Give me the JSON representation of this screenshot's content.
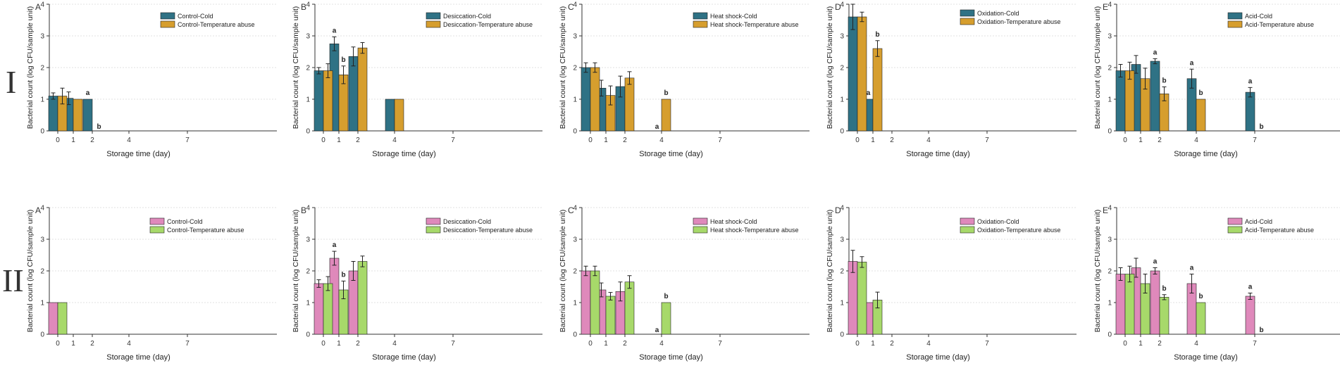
{
  "row_labels": [
    "I",
    "II"
  ],
  "colors": {
    "cold_row1": "#2f7285",
    "abuse_row1": "#d69e2e",
    "cold_row2": "#df89bb",
    "abuse_row2": "#a7d96a",
    "axis": "#333333",
    "grid": "#e1e1e1"
  },
  "chart_data": [
    {
      "type": "bar",
      "row": 1,
      "panel": "A",
      "xlabel": "Storage time (day)",
      "ylabel": "Bacterial count (log CFU/sample unit)",
      "x_ticks": [
        "0",
        "1",
        "2",
        "4",
        "7"
      ],
      "yticks": [
        "0",
        "1",
        "2",
        "3",
        "4"
      ],
      "ylim": [
        0,
        4
      ],
      "legend": "top-right",
      "series": [
        {
          "name": "Control-Cold",
          "values": [
            1.1,
            1.03,
            1.0,
            null,
            null
          ],
          "errors": [
            0.1,
            0.2,
            0,
            null,
            null
          ],
          "letters": [
            "",
            "",
            "a",
            "",
            ""
          ]
        },
        {
          "name": "Control-Temperature abuse",
          "values": [
            1.1,
            1.0,
            0,
            null,
            null
          ],
          "errors": [
            0.25,
            0,
            0,
            null,
            null
          ],
          "letters": [
            "",
            "",
            "b",
            "",
            ""
          ]
        }
      ]
    },
    {
      "type": "bar",
      "row": 1,
      "panel": "B",
      "xlabel": "Storage time (day)",
      "ylabel": "Bacterial count (log CFU/sample unit)",
      "x_ticks": [
        "0",
        "1",
        "2",
        "4",
        "7"
      ],
      "yticks": [
        "0",
        "1",
        "2",
        "3",
        "4"
      ],
      "ylim": [
        0,
        4
      ],
      "legend": "top-right",
      "series": [
        {
          "name": "Desiccation-Cold",
          "values": [
            1.9,
            2.75,
            2.35,
            1.0,
            null
          ],
          "errors": [
            0.1,
            0.22,
            0.3,
            0,
            null
          ],
          "letters": [
            "",
            "a",
            "",
            "",
            ""
          ]
        },
        {
          "name": "Desiccation-Temperature abuse",
          "values": [
            1.9,
            1.77,
            2.62,
            1.0,
            null
          ],
          "errors": [
            0.22,
            0.28,
            0.17,
            0,
            null
          ],
          "letters": [
            "",
            "b",
            "",
            "",
            ""
          ]
        }
      ]
    },
    {
      "type": "bar",
      "row": 1,
      "panel": "C",
      "xlabel": "Storage time (day)",
      "ylabel": "Bacterial count (log CFU/sample unit)",
      "x_ticks": [
        "0",
        "1",
        "2",
        "4",
        "7"
      ],
      "yticks": [
        "0",
        "1",
        "2",
        "3",
        "4"
      ],
      "ylim": [
        0,
        4
      ],
      "legend": "top-right",
      "series": [
        {
          "name": "Heat shock-Cold",
          "values": [
            2.0,
            1.35,
            1.4,
            0,
            null
          ],
          "errors": [
            0.15,
            0.25,
            0.33,
            0,
            null
          ],
          "letters": [
            "",
            "",
            "",
            "a",
            ""
          ]
        },
        {
          "name": "Heat shock-Temperature abuse",
          "values": [
            2.0,
            1.12,
            1.67,
            1.0,
            null
          ],
          "errors": [
            0.15,
            0.3,
            0.2,
            0,
            null
          ],
          "letters": [
            "",
            "",
            "",
            "b",
            ""
          ]
        }
      ]
    },
    {
      "type": "bar",
      "row": 1,
      "panel": "D",
      "xlabel": "Storage time (day)",
      "ylabel": "Bacterial count (log CFU/sample unit)",
      "x_ticks": [
        "0",
        "1",
        "2",
        "4",
        "7"
      ],
      "yticks": [
        "0",
        "1",
        "2",
        "3",
        "4"
      ],
      "ylim": [
        0,
        4
      ],
      "legend": "top-right",
      "series": [
        {
          "name": "Oxidation-Cold",
          "values": [
            3.6,
            1.0,
            null,
            null,
            null
          ],
          "errors": [
            0.4,
            0,
            null,
            null,
            null
          ],
          "letters": [
            "",
            "a",
            "",
            "",
            ""
          ]
        },
        {
          "name": "Oxidation-Temperature abuse",
          "values": [
            3.6,
            2.6,
            null,
            null,
            null
          ],
          "errors": [
            0.15,
            0.25,
            null,
            null,
            null
          ],
          "letters": [
            "",
            "b",
            "",
            "",
            ""
          ]
        }
      ]
    },
    {
      "type": "bar",
      "row": 1,
      "panel": "E",
      "xlabel": "Storage time (day)",
      "ylabel": "Bacterial count (log CFU/sample unit)",
      "x_ticks": [
        "0",
        "1",
        "2",
        "4",
        "7"
      ],
      "yticks": [
        "0",
        "1",
        "2",
        "3",
        "4"
      ],
      "ylim": [
        0,
        4
      ],
      "legend": "top-right",
      "series": [
        {
          "name": "Acid-Cold",
          "values": [
            1.9,
            2.1,
            2.2,
            1.65,
            1.22
          ],
          "errors": [
            0.2,
            0.28,
            0.08,
            0.3,
            0.15
          ],
          "letters": [
            "",
            "",
            "a",
            "a",
            "a"
          ]
        },
        {
          "name": "Acid-Temperature abuse",
          "values": [
            1.9,
            1.65,
            1.17,
            1.0,
            0
          ],
          "errors": [
            0.27,
            0.33,
            0.22,
            0,
            0
          ],
          "letters": [
            "",
            "",
            "b",
            "b",
            "b"
          ]
        }
      ]
    },
    {
      "type": "bar",
      "row": 2,
      "panel": "A",
      "xlabel": "Storage time (day)",
      "ylabel": "Bacterial count (log CFU/sample unit)",
      "x_ticks": [
        "0",
        "1",
        "2",
        "4",
        "7"
      ],
      "yticks": [
        "0",
        "1",
        "2",
        "3",
        "4"
      ],
      "ylim": [
        0,
        4
      ],
      "legend": "top-right",
      "series": [
        {
          "name": "Control-Cold",
          "values": [
            1.0,
            null,
            null,
            null,
            null
          ],
          "errors": [
            0,
            null,
            null,
            null,
            null
          ],
          "letters": [
            "",
            "",
            "",
            "",
            ""
          ]
        },
        {
          "name": "Control-Temperature abuse",
          "values": [
            1.0,
            null,
            null,
            null,
            null
          ],
          "errors": [
            0,
            null,
            null,
            null,
            null
          ],
          "letters": [
            "",
            "",
            "",
            "",
            ""
          ]
        }
      ]
    },
    {
      "type": "bar",
      "row": 2,
      "panel": "B",
      "xlabel": "Storage time (day)",
      "ylabel": "Bacterial count (log CFU/sample unit)",
      "x_ticks": [
        "0",
        "1",
        "2",
        "4",
        "7"
      ],
      "yticks": [
        "0",
        "1",
        "2",
        "3",
        "4"
      ],
      "ylim": [
        0,
        4
      ],
      "legend": "top-right",
      "series": [
        {
          "name": "Desiccation-Cold",
          "values": [
            1.6,
            2.4,
            2.0,
            null,
            null
          ],
          "errors": [
            0.12,
            0.22,
            0.3,
            null,
            null
          ],
          "letters": [
            "",
            "a",
            "",
            "",
            ""
          ]
        },
        {
          "name": "Desiccation-Temperature abuse",
          "values": [
            1.6,
            1.4,
            2.3,
            null,
            null
          ],
          "errors": [
            0.22,
            0.28,
            0.17,
            null,
            null
          ],
          "letters": [
            "",
            "b",
            "",
            "",
            ""
          ]
        }
      ]
    },
    {
      "type": "bar",
      "row": 2,
      "panel": "C",
      "xlabel": "Storage time (day)",
      "ylabel": "Bacterial count (log CFU/sample unit)",
      "x_ticks": [
        "0",
        "1",
        "2",
        "4",
        "7"
      ],
      "yticks": [
        "0",
        "1",
        "2",
        "3",
        "4"
      ],
      "ylim": [
        0,
        4
      ],
      "legend": "top-right",
      "series": [
        {
          "name": "Heat shock-Cold",
          "values": [
            2.0,
            1.4,
            1.35,
            0,
            null
          ],
          "errors": [
            0.15,
            0.22,
            0.3,
            0,
            null
          ],
          "letters": [
            "",
            "",
            "",
            "a",
            ""
          ]
        },
        {
          "name": "Heat shock-Temperature abuse",
          "values": [
            2.0,
            1.2,
            1.65,
            1.0,
            null
          ],
          "errors": [
            0.15,
            0.12,
            0.2,
            0,
            null
          ],
          "letters": [
            "",
            "",
            "",
            "b",
            ""
          ]
        }
      ]
    },
    {
      "type": "bar",
      "row": 2,
      "panel": "D",
      "xlabel": "Storage time (day)",
      "ylabel": "Bacterial count (log CFU/sample unit)",
      "x_ticks": [
        "0",
        "1",
        "2",
        "4",
        "7"
      ],
      "yticks": [
        "0",
        "1",
        "2",
        "3",
        "4"
      ],
      "ylim": [
        0,
        4
      ],
      "legend": "top-right",
      "series": [
        {
          "name": "Oxidation-Cold",
          "values": [
            2.3,
            1.0,
            null,
            null,
            null
          ],
          "errors": [
            0.35,
            0,
            null,
            null,
            null
          ],
          "letters": [
            "",
            "",
            "",
            "",
            ""
          ]
        },
        {
          "name": "Oxidation-Temperature abuse",
          "values": [
            2.28,
            1.08,
            null,
            null,
            null
          ],
          "errors": [
            0.17,
            0.25,
            null,
            null,
            null
          ],
          "letters": [
            "",
            "",
            "",
            "",
            ""
          ]
        }
      ]
    },
    {
      "type": "bar",
      "row": 2,
      "panel": "E",
      "xlabel": "Storage time (day)",
      "ylabel": "Bacterial count (log CFU/sample unit)",
      "x_ticks": [
        "0",
        "1",
        "2",
        "4",
        "7"
      ],
      "yticks": [
        "0",
        "1",
        "2",
        "3",
        "4"
      ],
      "ylim": [
        0,
        4
      ],
      "legend": "top-right",
      "series": [
        {
          "name": "Acid-Cold",
          "values": [
            1.9,
            2.1,
            2.0,
            1.6,
            1.2
          ],
          "errors": [
            0.2,
            0.3,
            0.1,
            0.3,
            0.1
          ],
          "letters": [
            "",
            "",
            "a",
            "a",
            "a"
          ]
        },
        {
          "name": "Acid-Temperature abuse",
          "values": [
            1.9,
            1.6,
            1.17,
            1.0,
            0
          ],
          "errors": [
            0.25,
            0.3,
            0.08,
            0,
            0
          ],
          "letters": [
            "",
            "",
            "b",
            "b",
            "b"
          ]
        }
      ]
    }
  ]
}
